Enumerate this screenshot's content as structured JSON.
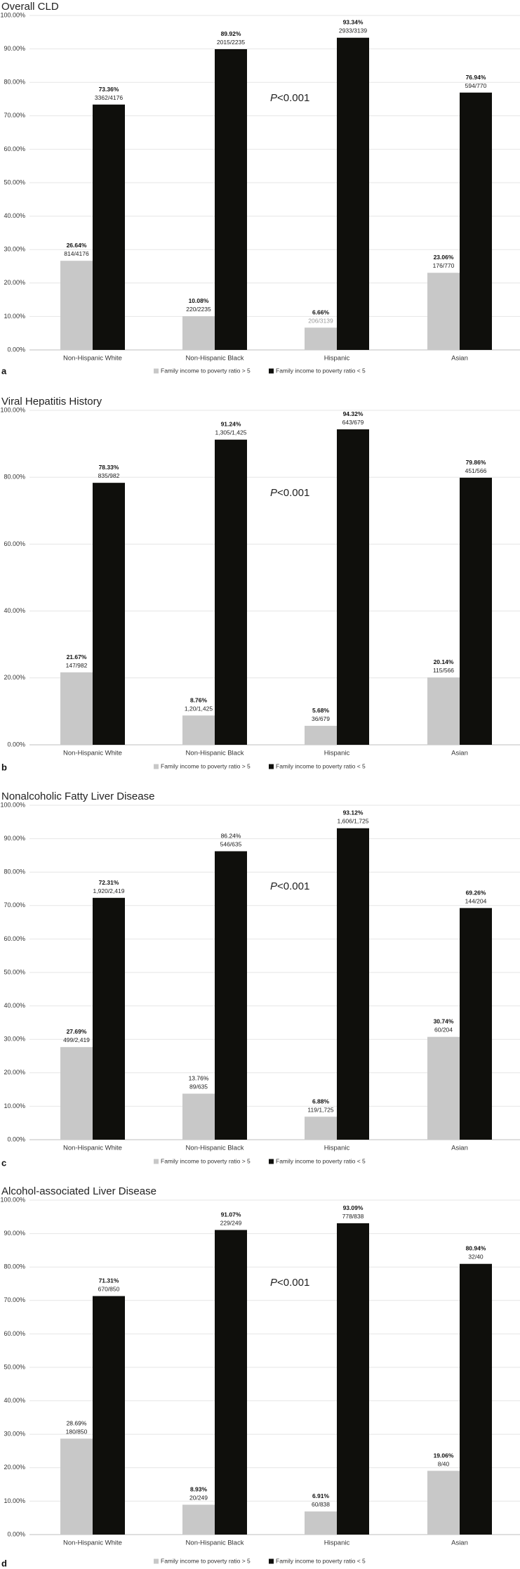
{
  "colors": {
    "high_income": "#c8c8c8",
    "low_income": "#0f0f0c",
    "grid": "#e6e6e6"
  },
  "legend": {
    "high_income": "Family income to poverty ratio > 5",
    "low_income": "Family  income to poverty ratio < 5"
  },
  "chart_data": [
    {
      "type": "bar",
      "panel": "a",
      "title": "Overall CLD",
      "categories": [
        "Non-Hispanic White",
        "Non-Hispanic Black",
        "Hispanic",
        "Asian"
      ],
      "ylim": [
        0,
        100
      ],
      "yticks": [
        "0.00%",
        "10.00%",
        "20.00%",
        "30.00%",
        "40.00%",
        "50.00%",
        "60.00%",
        "70.00%",
        "80.00%",
        "90.00%",
        "100.00%"
      ],
      "annotation": {
        "p": "P",
        "rest": "<0.001"
      },
      "series": [
        {
          "name": "Family income to poverty ratio > 5",
          "values": [
            26.64,
            10.08,
            6.66,
            23.06
          ],
          "pct_labels": [
            "26.64%",
            "10.08%",
            "6.66%",
            "23.06%"
          ],
          "frac_labels": [
            "814/4176",
            "220/2235",
            "206/3139",
            "176/770"
          ],
          "pct_bold": [
            true,
            true,
            true,
            true
          ],
          "frac_gray": [
            false,
            false,
            true,
            false
          ]
        },
        {
          "name": "Family  income to poverty ratio < 5",
          "values": [
            73.36,
            89.92,
            93.34,
            76.94
          ],
          "pct_labels": [
            "73.36%",
            "89.92%",
            "93.34%",
            "76.94%"
          ],
          "frac_labels": [
            "3362/4176",
            "2015/2235",
            "2933/3139",
            "594/770"
          ],
          "pct_bold": [
            true,
            true,
            true,
            true
          ],
          "frac_gray": [
            false,
            false,
            false,
            false
          ]
        }
      ]
    },
    {
      "type": "bar",
      "panel": "b",
      "title": "Viral Hepatitis History",
      "categories": [
        "Non-Hispanic White",
        "Non-Hispanic Black",
        "Hispanic",
        "Asian"
      ],
      "ylim": [
        0,
        100
      ],
      "yticks": [
        "0.00%",
        "20.00%",
        "40.00%",
        "60.00%",
        "80.00%",
        "100.00%"
      ],
      "annotation": {
        "p": "P",
        "rest": "<0.001"
      },
      "series": [
        {
          "name": "Family income to poverty ratio > 5",
          "values": [
            21.67,
            8.76,
            5.68,
            20.14
          ],
          "pct_labels": [
            "21.67%",
            "8.76%",
            "5.68%",
            "20.14%"
          ],
          "frac_labels": [
            "147/982",
            "1,20/1,425",
            "36/679",
            "115/566"
          ],
          "pct_bold": [
            true,
            true,
            true,
            true
          ],
          "frac_gray": [
            false,
            false,
            false,
            false
          ]
        },
        {
          "name": "Family  income to poverty ratio < 5",
          "values": [
            78.33,
            91.24,
            94.32,
            79.86
          ],
          "pct_labels": [
            "78.33%",
            "91.24%",
            "94.32%",
            "79.86%"
          ],
          "frac_labels": [
            "835/982",
            "1,305/1,425",
            "643/679",
            "451/566"
          ],
          "pct_bold": [
            true,
            true,
            true,
            true
          ],
          "frac_gray": [
            false,
            false,
            false,
            false
          ]
        }
      ]
    },
    {
      "type": "bar",
      "panel": "c",
      "title": "Nonalcoholic Fatty Liver Disease",
      "categories": [
        "Non-Hispanic White",
        "Non-Hispanic Black",
        "Hispanic",
        "Asian"
      ],
      "ylim": [
        0,
        100
      ],
      "yticks": [
        "0.00%",
        "10.00%",
        "20.00%",
        "30.00%",
        "40.00%",
        "50.00%",
        "60.00%",
        "70.00%",
        "80.00%",
        "90.00%",
        "100.00%"
      ],
      "annotation": {
        "p": "P",
        "rest": "<0.001"
      },
      "series": [
        {
          "name": "Family income to poverty ratio > 5",
          "values": [
            27.69,
            13.76,
            6.88,
            30.74
          ],
          "pct_labels": [
            "27.69%",
            "13.76%",
            "6.88%",
            "30.74%"
          ],
          "frac_labels": [
            "499/2,419",
            "89/635",
            "119/1,725",
            "60/204"
          ],
          "pct_bold": [
            true,
            false,
            true,
            true
          ],
          "frac_gray": [
            false,
            false,
            false,
            false
          ]
        },
        {
          "name": "Family  income to poverty ratio < 5",
          "values": [
            72.31,
            86.24,
            93.12,
            69.26
          ],
          "pct_labels": [
            "72.31%",
            "86.24%",
            "93.12%",
            "69.26%"
          ],
          "frac_labels": [
            "1,920/2,419",
            "546/635",
            "1,606/1,725",
            "144/204"
          ],
          "pct_bold": [
            true,
            false,
            true,
            true
          ],
          "frac_gray": [
            false,
            false,
            false,
            false
          ]
        }
      ]
    },
    {
      "type": "bar",
      "panel": "d",
      "title": "Alcohol-associated Liver Disease",
      "categories": [
        "Non-Hispanic White",
        "Non-Hispanic Black",
        "Hispanic",
        "Asian"
      ],
      "ylim": [
        0,
        100
      ],
      "yticks": [
        "0.00%",
        "10.00%",
        "20.00%",
        "30.00%",
        "40.00%",
        "50.00%",
        "60.00%",
        "70.00%",
        "80.00%",
        "90.00%",
        "100.00%"
      ],
      "annotation": {
        "p": "P",
        "rest": "<0.001"
      },
      "series": [
        {
          "name": "Family income to poverty ratio > 5",
          "values": [
            28.69,
            8.93,
            6.91,
            19.06
          ],
          "pct_labels": [
            "28.69%",
            "8.93%",
            "6.91%",
            "19.06%"
          ],
          "frac_labels": [
            "180/850",
            "20/249",
            "60/838",
            "8/40"
          ],
          "pct_bold": [
            false,
            true,
            true,
            true
          ],
          "frac_gray": [
            false,
            false,
            false,
            false
          ]
        },
        {
          "name": "Family  income to poverty ratio < 5",
          "values": [
            71.31,
            91.07,
            93.09,
            80.94
          ],
          "pct_labels": [
            "71.31%",
            "91.07%",
            "93.09%",
            "80.94%"
          ],
          "frac_labels": [
            "670/850",
            "229/249",
            "778/838",
            "32/40"
          ],
          "pct_bold": [
            true,
            true,
            true,
            true
          ],
          "frac_gray": [
            false,
            false,
            false,
            false
          ]
        }
      ]
    }
  ]
}
